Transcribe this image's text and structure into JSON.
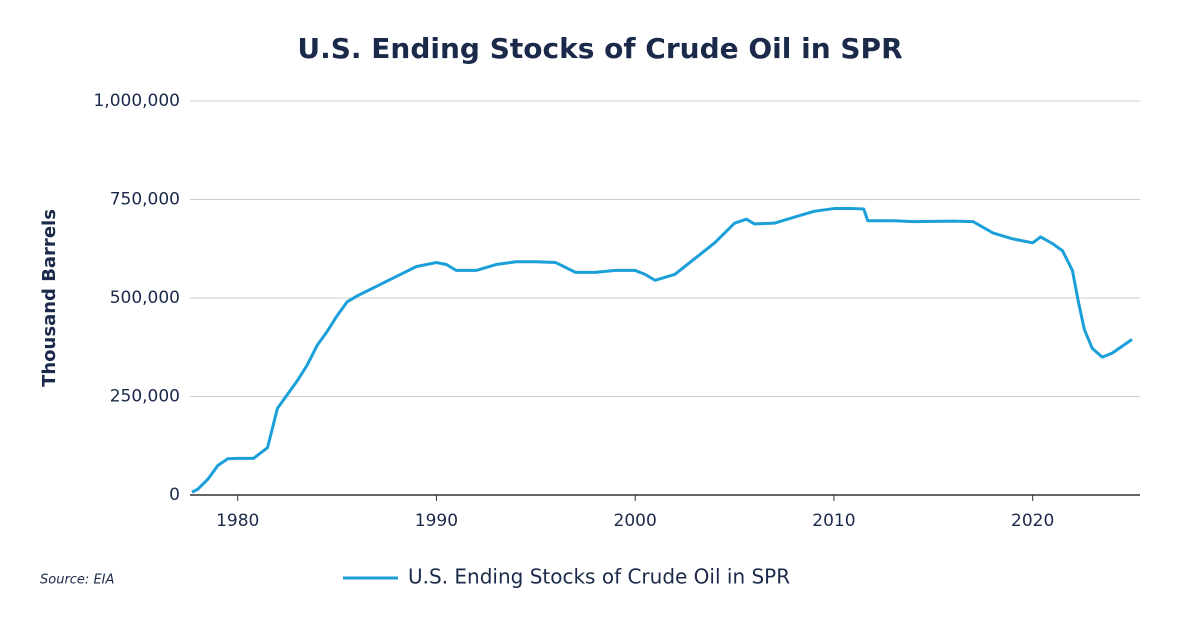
{
  "chart_data": {
    "type": "line",
    "title": "U.S. Ending Stocks of Crude Oil in SPR",
    "y_label": "Thousand Barrels",
    "source": "Source: EIA",
    "x": [
      1977.7,
      1978,
      1978.5,
      1979,
      1979.5,
      1980,
      1980.8,
      1981.5,
      1981.8,
      1982,
      1982.5,
      1983,
      1983.5,
      1984,
      1984.5,
      1985,
      1985.5,
      1986,
      1987,
      1988,
      1989,
      1990,
      1990.5,
      1991,
      1992,
      1993,
      1994,
      1995,
      1996,
      1997,
      1998,
      1999,
      2000,
      2000.5,
      2001,
      2002,
      2003,
      2004,
      2005,
      2005.6,
      2006,
      2007,
      2008,
      2009,
      2010,
      2011,
      2011.5,
      2011.7,
      2013,
      2014,
      2016,
      2017,
      2018,
      2019,
      2020,
      2020.4,
      2021,
      2021.5,
      2022,
      2022.3,
      2022.6,
      2023,
      2023.5,
      2024,
      2025
    ],
    "series": [
      {
        "name": "U.S. Ending Stocks of Crude Oil in SPR",
        "color": "#1a9fd9",
        "values": [
          7000,
          15000,
          40000,
          75000,
          92000,
          93000,
          93000,
          120000,
          180000,
          220000,
          255000,
          290000,
          330000,
          380000,
          415000,
          455000,
          490000,
          505000,
          530000,
          555000,
          580000,
          590000,
          585000,
          570000,
          570000,
          585000,
          592000,
          592000,
          590000,
          565000,
          565000,
          570000,
          570000,
          560000,
          545000,
          560000,
          600000,
          640000,
          690000,
          700000,
          688000,
          690000,
          705000,
          720000,
          727000,
          727000,
          726000,
          696000,
          696000,
          694000,
          695000,
          694000,
          665000,
          650000,
          640000,
          655000,
          638000,
          620000,
          570000,
          490000,
          420000,
          372000,
          350000,
          360000,
          395000
        ]
      }
    ],
    "xlim": [
      1977.6,
      2025.4
    ],
    "xticks": [
      1980,
      1990,
      2000,
      2010,
      2020
    ],
    "ylim": [
      0,
      1000000
    ],
    "yticks": [
      0,
      {
        "value": 250000,
        "label": "250,000"
      },
      {
        "value": 500000,
        "label": "500,000"
      },
      {
        "value": 750000,
        "label": "750,000"
      },
      {
        "value": 1000000,
        "label": "1,000,000"
      }
    ],
    "grid": true,
    "legend": "bottom"
  }
}
